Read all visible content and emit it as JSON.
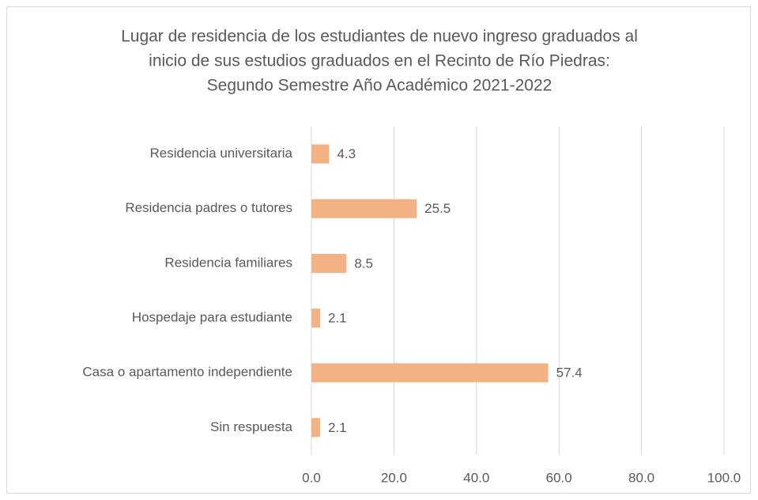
{
  "chart_data": {
    "type": "bar",
    "orientation": "horizontal",
    "title": [
      "Lugar de residencia de los estudiantes de nuevo ingreso graduados al",
      "inicio de sus estudios graduados en el Recinto de Río Piedras:",
      "Segundo Semestre Año Académico 2021-2022"
    ],
    "categories": [
      "Residencia universitaria",
      "Residencia padres o tutores",
      "Residencia familiares",
      "Hospedaje para estudiante",
      "Casa o apartamento independiente",
      "Sin respuesta"
    ],
    "values": [
      4.3,
      25.5,
      8.5,
      2.1,
      57.4,
      2.1
    ],
    "color": "#f4b183",
    "xlim": [
      0,
      100
    ],
    "xticks": [
      {
        "value": 0,
        "label": "0.0"
      },
      {
        "value": 20,
        "label": "20.0"
      },
      {
        "value": 40,
        "label": "40.0"
      },
      {
        "value": 60,
        "label": "60.0"
      },
      {
        "value": 80,
        "label": "80.0"
      },
      {
        "value": 100,
        "label": "100.0"
      }
    ],
    "grid": true
  }
}
